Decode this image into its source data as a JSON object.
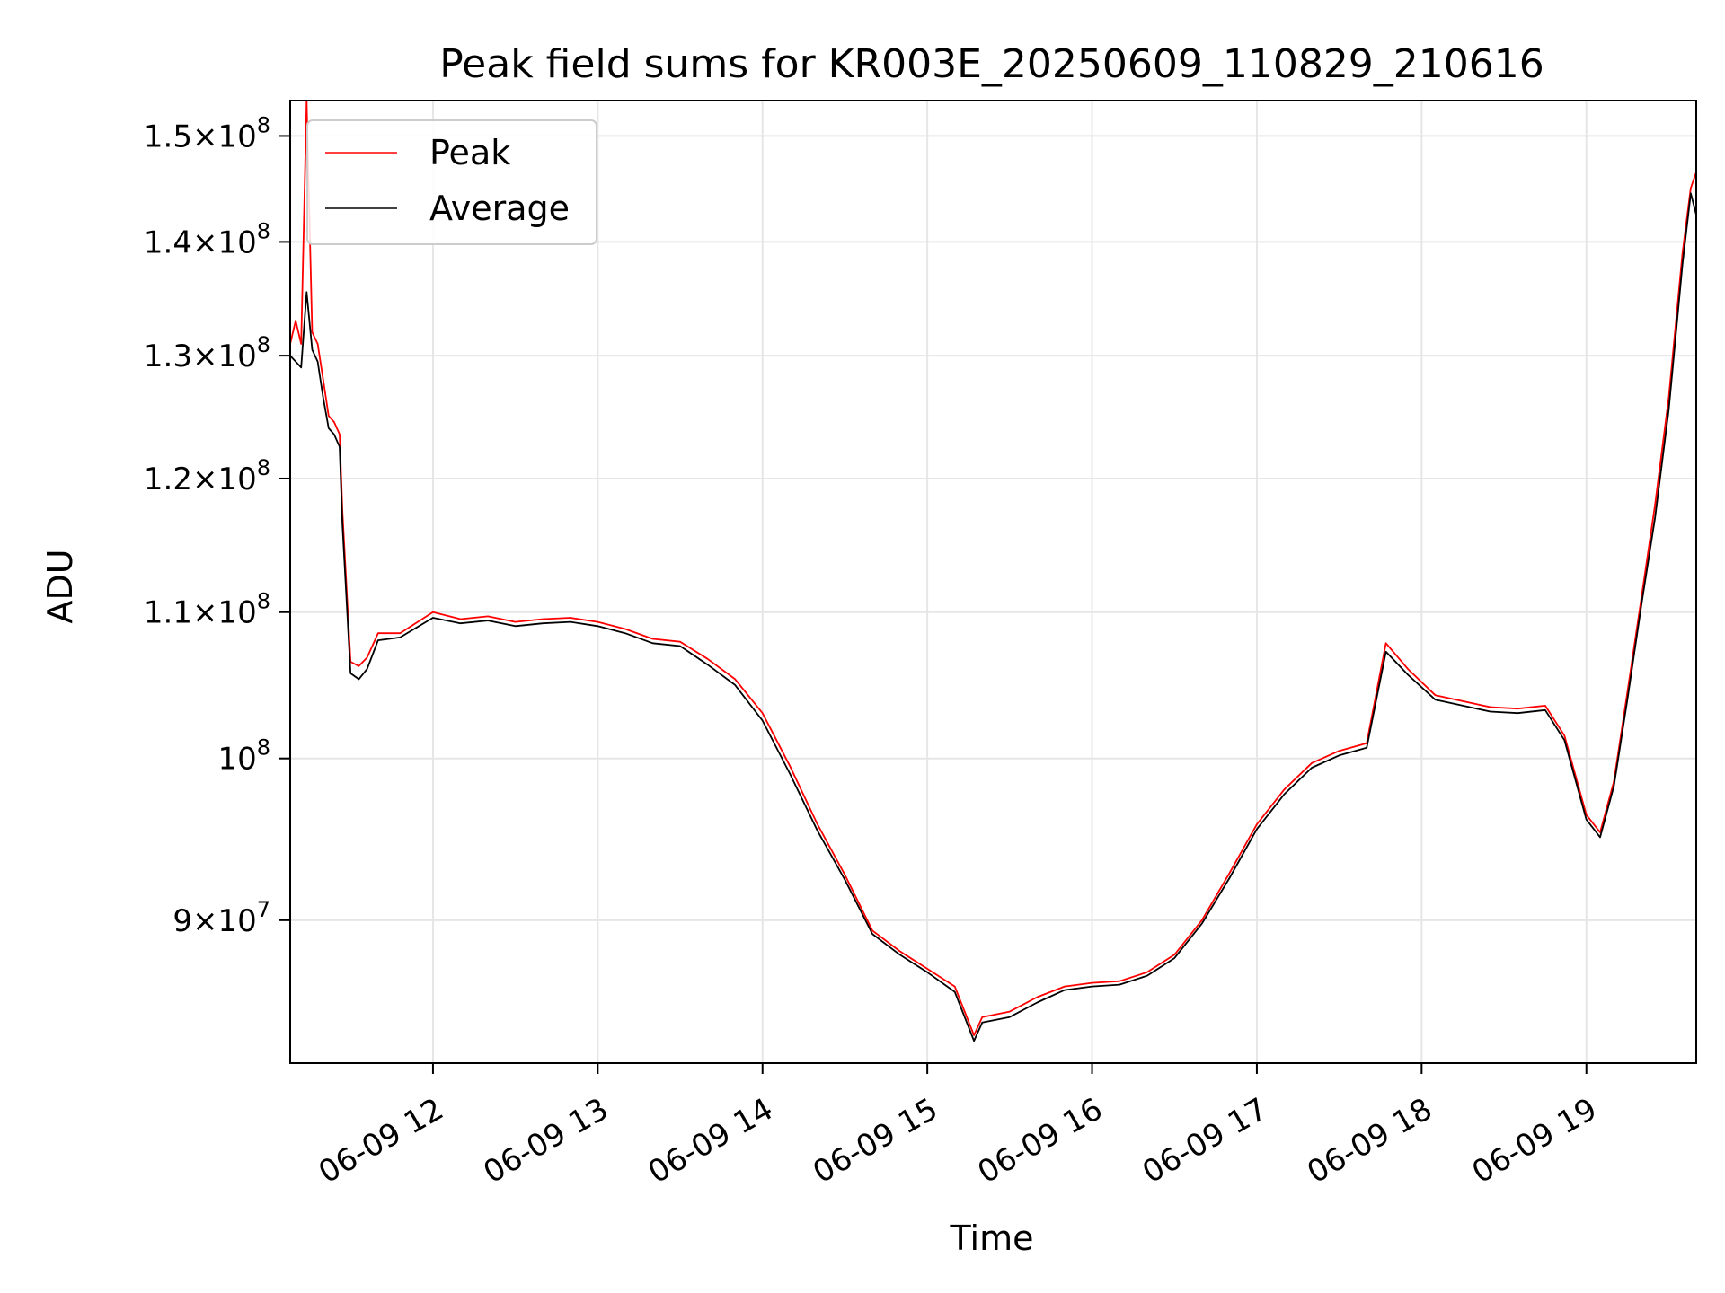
{
  "chart_data": {
    "type": "line",
    "title": "Peak field sums for KR003E_20250609_110829_210616",
    "xlabel": "Time",
    "ylabel": "ADU",
    "y_scale": "log",
    "ylim": [
      82000000,
      153500000
    ],
    "xlim": [
      "2025-06-09 11:08",
      "2025-06-09 19:40"
    ],
    "grid": true,
    "legend": "upper-left",
    "x_ticks": [
      {
        "t": "2025-06-09 12:00",
        "label": "06-09 12"
      },
      {
        "t": "2025-06-09 13:00",
        "label": "06-09 13"
      },
      {
        "t": "2025-06-09 14:00",
        "label": "06-09 14"
      },
      {
        "t": "2025-06-09 15:00",
        "label": "06-09 15"
      },
      {
        "t": "2025-06-09 16:00",
        "label": "06-09 16"
      },
      {
        "t": "2025-06-09 17:00",
        "label": "06-09 17"
      },
      {
        "t": "2025-06-09 18:00",
        "label": "06-09 18"
      },
      {
        "t": "2025-06-09 19:00",
        "label": "06-09 19"
      }
    ],
    "y_ticks": [
      {
        "value": 90000000,
        "mant": "9",
        "sym": "×",
        "base": "10",
        "exp": "7"
      },
      {
        "value": 100000000,
        "mant": "",
        "sym": "",
        "base": "10",
        "exp": "8"
      },
      {
        "value": 110000000,
        "mant": "1.1",
        "sym": "×",
        "base": "10",
        "exp": "8"
      },
      {
        "value": 120000000,
        "mant": "1.2",
        "sym": "×",
        "base": "10",
        "exp": "8"
      },
      {
        "value": 130000000,
        "mant": "1.3",
        "sym": "×",
        "base": "10",
        "exp": "8"
      },
      {
        "value": 140000000,
        "mant": "1.4",
        "sym": "×",
        "base": "10",
        "exp": "8"
      },
      {
        "value": 150000000,
        "mant": "1.5",
        "sym": "×",
        "base": "10",
        "exp": "8"
      }
    ],
    "series": [
      {
        "name": "Peak",
        "color": "#ff0000",
        "x": [
          "2025-06-09 11:08",
          "2025-06-09 11:10",
          "2025-06-09 11:12",
          "2025-06-09 11:14",
          "2025-06-09 11:16",
          "2025-06-09 11:18",
          "2025-06-09 11:20",
          "2025-06-09 11:22",
          "2025-06-09 11:24",
          "2025-06-09 11:26",
          "2025-06-09 11:27",
          "2025-06-09 11:30",
          "2025-06-09 11:33",
          "2025-06-09 11:36",
          "2025-06-09 11:40",
          "2025-06-09 11:48",
          "2025-06-09 12:00",
          "2025-06-09 12:10",
          "2025-06-09 12:20",
          "2025-06-09 12:30",
          "2025-06-09 12:40",
          "2025-06-09 12:50",
          "2025-06-09 13:00",
          "2025-06-09 13:10",
          "2025-06-09 13:20",
          "2025-06-09 13:30",
          "2025-06-09 13:40",
          "2025-06-09 13:50",
          "2025-06-09 14:00",
          "2025-06-09 14:10",
          "2025-06-09 14:20",
          "2025-06-09 14:30",
          "2025-06-09 14:40",
          "2025-06-09 14:50",
          "2025-06-09 15:00",
          "2025-06-09 15:10",
          "2025-06-09 15:17",
          "2025-06-09 15:20",
          "2025-06-09 15:30",
          "2025-06-09 15:40",
          "2025-06-09 15:50",
          "2025-06-09 16:00",
          "2025-06-09 16:10",
          "2025-06-09 16:20",
          "2025-06-09 16:30",
          "2025-06-09 16:40",
          "2025-06-09 16:50",
          "2025-06-09 17:00",
          "2025-06-09 17:10",
          "2025-06-09 17:20",
          "2025-06-09 17:30",
          "2025-06-09 17:40",
          "2025-06-09 17:47",
          "2025-06-09 17:55",
          "2025-06-09 18:05",
          "2025-06-09 18:15",
          "2025-06-09 18:25",
          "2025-06-09 18:35",
          "2025-06-09 18:45",
          "2025-06-09 18:52",
          "2025-06-09 19:00",
          "2025-06-09 19:05",
          "2025-06-09 19:10",
          "2025-06-09 19:15",
          "2025-06-09 19:20",
          "2025-06-09 19:25",
          "2025-06-09 19:30",
          "2025-06-09 19:35",
          "2025-06-09 19:38",
          "2025-06-09 19:40"
        ],
        "y": [
          131000000,
          133000000,
          131000000,
          153500000,
          132000000,
          131000000,
          128000000,
          125000000,
          124500000,
          123500000,
          117500000,
          106500000,
          106200000,
          106800000,
          108500000,
          108500000,
          110000000,
          109500000,
          109700000,
          109300000,
          109500000,
          109600000,
          109300000,
          108800000,
          108100000,
          107900000,
          106700000,
          105300000,
          103000000,
          99500000,
          95800000,
          92700000,
          89400000,
          88200000,
          87200000,
          86200000,
          83500000,
          84500000,
          84800000,
          85600000,
          86200000,
          86400000,
          86500000,
          87000000,
          88000000,
          90000000,
          92800000,
          95800000,
          98000000,
          99700000,
          100500000,
          101000000,
          107800000,
          106000000,
          104200000,
          103800000,
          103400000,
          103300000,
          103500000,
          101500000,
          96400000,
          95300000,
          98500000,
          104500000,
          111000000,
          118000000,
          126500000,
          139000000,
          145000000,
          146500000
        ]
      },
      {
        "name": "Average",
        "color": "#000000",
        "x": [
          "2025-06-09 11:08",
          "2025-06-09 11:10",
          "2025-06-09 11:12",
          "2025-06-09 11:14",
          "2025-06-09 11:16",
          "2025-06-09 11:18",
          "2025-06-09 11:20",
          "2025-06-09 11:22",
          "2025-06-09 11:24",
          "2025-06-09 11:26",
          "2025-06-09 11:27",
          "2025-06-09 11:30",
          "2025-06-09 11:33",
          "2025-06-09 11:36",
          "2025-06-09 11:40",
          "2025-06-09 11:48",
          "2025-06-09 12:00",
          "2025-06-09 12:10",
          "2025-06-09 12:20",
          "2025-06-09 12:30",
          "2025-06-09 12:40",
          "2025-06-09 12:50",
          "2025-06-09 13:00",
          "2025-06-09 13:10",
          "2025-06-09 13:20",
          "2025-06-09 13:30",
          "2025-06-09 13:40",
          "2025-06-09 13:50",
          "2025-06-09 14:00",
          "2025-06-09 14:10",
          "2025-06-09 14:20",
          "2025-06-09 14:30",
          "2025-06-09 14:40",
          "2025-06-09 14:50",
          "2025-06-09 15:00",
          "2025-06-09 15:10",
          "2025-06-09 15:17",
          "2025-06-09 15:20",
          "2025-06-09 15:30",
          "2025-06-09 15:40",
          "2025-06-09 15:50",
          "2025-06-09 16:00",
          "2025-06-09 16:10",
          "2025-06-09 16:20",
          "2025-06-09 16:30",
          "2025-06-09 16:40",
          "2025-06-09 16:50",
          "2025-06-09 17:00",
          "2025-06-09 17:10",
          "2025-06-09 17:20",
          "2025-06-09 17:30",
          "2025-06-09 17:40",
          "2025-06-09 17:47",
          "2025-06-09 17:55",
          "2025-06-09 18:05",
          "2025-06-09 18:15",
          "2025-06-09 18:25",
          "2025-06-09 18:35",
          "2025-06-09 18:45",
          "2025-06-09 18:52",
          "2025-06-09 19:00",
          "2025-06-09 19:05",
          "2025-06-09 19:10",
          "2025-06-09 19:15",
          "2025-06-09 19:20",
          "2025-06-09 19:25",
          "2025-06-09 19:30",
          "2025-06-09 19:35",
          "2025-06-09 19:38",
          "2025-06-09 19:40"
        ],
        "y": [
          130000000,
          129500000,
          129000000,
          135500000,
          130500000,
          129500000,
          126500000,
          124000000,
          123500000,
          122500000,
          116500000,
          105700000,
          105300000,
          106000000,
          108000000,
          108200000,
          109600000,
          109200000,
          109400000,
          109000000,
          109200000,
          109300000,
          109000000,
          108500000,
          107800000,
          107600000,
          106300000,
          104900000,
          102500000,
          99000000,
          95400000,
          92400000,
          89200000,
          88000000,
          87000000,
          85900000,
          83200000,
          84200000,
          84500000,
          85300000,
          86000000,
          86200000,
          86300000,
          86800000,
          87800000,
          89800000,
          92500000,
          95500000,
          97700000,
          99400000,
          100200000,
          100700000,
          107200000,
          105600000,
          103900000,
          103500000,
          103100000,
          103000000,
          103200000,
          101200000,
          96100000,
          95000000,
          98200000,
          104000000,
          110500000,
          117000000,
          125500000,
          138000000,
          144500000,
          142500000
        ]
      }
    ]
  }
}
